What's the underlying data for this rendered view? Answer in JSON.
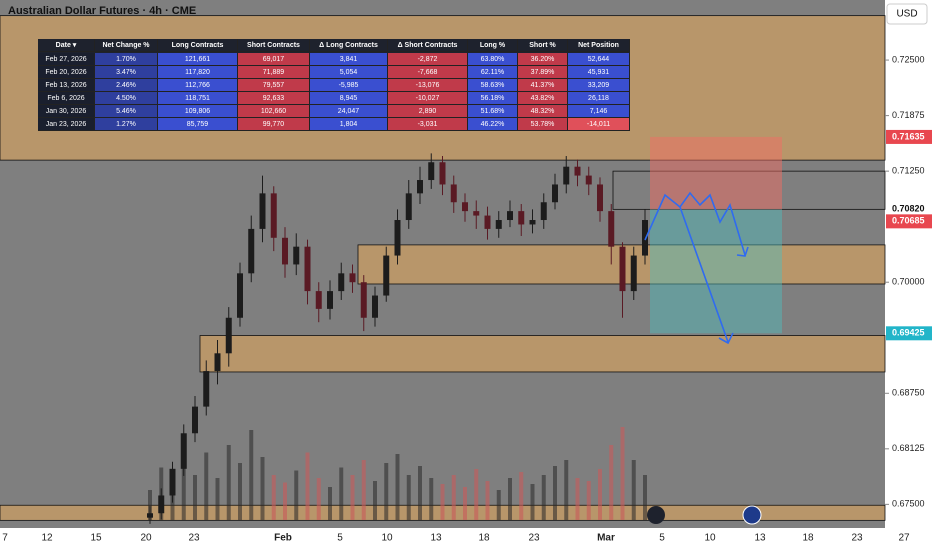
{
  "chart_data": {
    "type": "candlestick",
    "title": "Australian Dollar Futures · 4h · CME",
    "currency": "USD",
    "ylim": [
      0.67324,
      0.73176
    ],
    "yticks": [
      {
        "value": 0.725,
        "label": "0.72500"
      },
      {
        "value": 0.71875,
        "label": "0.71875"
      },
      {
        "value": 0.7125,
        "label": "0.71250"
      },
      {
        "value": 0.7,
        "label": "0.70000"
      },
      {
        "value": 0.6875,
        "label": "0.68750"
      },
      {
        "value": 0.68125,
        "label": "0.68125"
      },
      {
        "value": 0.675,
        "label": "0.67500"
      }
    ],
    "levels": [
      {
        "value": 0.71635,
        "label": "0.71635",
        "color": "#e8474f"
      },
      {
        "value": 0.7082,
        "label": "0.70820",
        "color": "#ffffff"
      },
      {
        "value": 0.70685,
        "label": "0.70685",
        "color": "#e8474f"
      },
      {
        "value": 0.69425,
        "label": "0.69425",
        "color": "#22b5c9"
      }
    ],
    "x_labels": [
      "7",
      "12",
      "15",
      "20",
      "23",
      "Feb",
      "5",
      "10",
      "13",
      "18",
      "23",
      "Mar",
      "5",
      "10",
      "13",
      "18",
      "23",
      "27"
    ],
    "zones": [
      [
        0.71374,
        0.73
      ],
      [
        0.7082,
        0.7125
      ],
      [
        0.6998,
        0.7042
      ],
      [
        0.6899,
        0.694
      ],
      [
        0.6732,
        0.6749
      ]
    ],
    "target_box": {
      "loss": [
        0.7082,
        0.71635
      ],
      "profit": [
        0.69425,
        0.7082
      ]
    },
    "open": [
      0.6735,
      0.674,
      0.676,
      0.679,
      0.683,
      0.686,
      0.69,
      0.692,
      0.696,
      0.701,
      0.706,
      0.71,
      0.705,
      0.702,
      0.704,
      0.699,
      0.697,
      0.699,
      0.701,
      0.7,
      0.696,
      0.6985,
      0.703,
      0.707,
      0.71,
      0.7115,
      0.7135,
      0.711,
      0.709,
      0.708,
      0.7075,
      0.706,
      0.707,
      0.708,
      0.7065,
      0.707,
      0.709,
      0.711,
      0.713,
      0.712,
      0.711,
      0.708,
      0.704,
      0.699,
      0.703
    ],
    "high": [
      0.6748,
      0.6768,
      0.6798,
      0.684,
      0.6872,
      0.6912,
      0.6935,
      0.6972,
      0.7022,
      0.7075,
      0.712,
      0.7108,
      0.7062,
      0.7055,
      0.7048,
      0.7,
      0.7002,
      0.7022,
      0.702,
      0.7008,
      0.6995,
      0.704,
      0.7082,
      0.7115,
      0.713,
      0.7145,
      0.7142,
      0.712,
      0.71,
      0.7092,
      0.7085,
      0.708,
      0.7092,
      0.7088,
      0.7082,
      0.71,
      0.7122,
      0.7142,
      0.7138,
      0.713,
      0.7118,
      0.7088,
      0.7045,
      0.704,
      0.7082
    ],
    "low": [
      0.6728,
      0.6733,
      0.6752,
      0.6782,
      0.682,
      0.685,
      0.6885,
      0.6905,
      0.695,
      0.7,
      0.7045,
      0.7035,
      0.7005,
      0.7008,
      0.6975,
      0.6955,
      0.6958,
      0.698,
      0.6988,
      0.6945,
      0.695,
      0.6978,
      0.702,
      0.706,
      0.7088,
      0.7105,
      0.7098,
      0.7078,
      0.7068,
      0.706,
      0.7048,
      0.705,
      0.7062,
      0.7052,
      0.7055,
      0.706,
      0.7082,
      0.71,
      0.7108,
      0.7098,
      0.7068,
      0.702,
      0.696,
      0.698,
      0.702
    ],
    "close": [
      0.674,
      0.676,
      0.679,
      0.683,
      0.686,
      0.69,
      0.692,
      0.696,
      0.701,
      0.706,
      0.71,
      0.705,
      0.702,
      0.704,
      0.699,
      0.697,
      0.699,
      0.701,
      0.7,
      0.696,
      0.6985,
      0.703,
      0.707,
      0.71,
      0.7115,
      0.7135,
      0.711,
      0.709,
      0.708,
      0.7075,
      0.706,
      0.707,
      0.708,
      0.7065,
      0.707,
      0.709,
      0.711,
      0.713,
      0.712,
      0.711,
      0.708,
      0.704,
      0.699,
      0.703,
      0.707
    ],
    "volume": [
      20,
      35,
      25,
      40,
      30,
      45,
      28,
      50,
      38,
      60,
      42,
      30,
      25,
      33,
      45,
      28,
      22,
      35,
      30,
      40,
      26,
      38,
      44,
      30,
      36,
      28,
      24,
      30,
      22,
      34,
      26,
      20,
      28,
      32,
      24,
      30,
      36,
      40,
      28,
      26,
      34,
      50,
      62,
      40,
      30
    ],
    "up_color": "#1c1c1c",
    "down_color": "#5a1a24"
  },
  "cot_table": {
    "columns": [
      "Date ▾",
      "Net Change %",
      "Long Contracts",
      "Short Contracts",
      "Δ Long Contracts",
      "Δ Short Contracts",
      "Long %",
      "Short %",
      "Net Position"
    ],
    "rows": [
      [
        "Feb 27, 2026",
        "1.70%",
        "121,661",
        "69,017",
        "3,841",
        "-2,872",
        "63.80%",
        "36.20%",
        "52,644"
      ],
      [
        "Feb 20, 2026",
        "3.47%",
        "117,820",
        "71,889",
        "5,054",
        "-7,668",
        "62.11%",
        "37.89%",
        "45,931"
      ],
      [
        "Feb 13, 2026",
        "2.46%",
        "112,766",
        "79,557",
        "-5,985",
        "-13,076",
        "58.63%",
        "41.37%",
        "33,209"
      ],
      [
        "Feb 6, 2026",
        "4.50%",
        "118,751",
        "92,633",
        "8,945",
        "-10,027",
        "56.18%",
        "43.82%",
        "26,118"
      ],
      [
        "Jan 30, 2026",
        "5.46%",
        "109,806",
        "102,660",
        "24,047",
        "2,890",
        "51.68%",
        "48.32%",
        "7,146"
      ],
      [
        "Jan 23, 2026",
        "1.27%",
        "85,759",
        "99,770",
        "1,804",
        "-3,031",
        "46.22%",
        "53.78%",
        "-14,011"
      ]
    ]
  }
}
